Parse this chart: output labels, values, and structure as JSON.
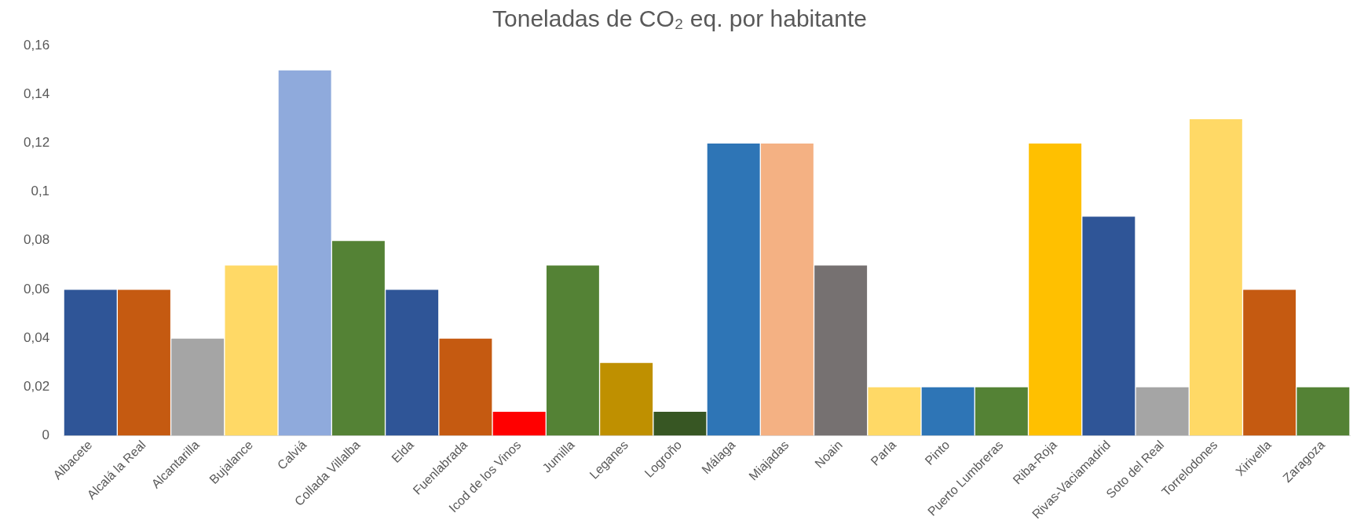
{
  "chart_data": {
    "type": "bar",
    "title": "Toneladas de CO₂ eq. por habitante",
    "categories": [
      "Albacete",
      "Alcalá la Real",
      "Alcantarilla",
      "Bujalance",
      "Calviá",
      "Collada Villalba",
      "Elda",
      "Fuenlabrada",
      "Icod de los Vinos",
      "Jumilla",
      "Leganes",
      "Logroño",
      "Málaga",
      "Miajadas",
      "Noain",
      "Parla",
      "Pinto",
      "Puerto Lumbreras",
      "Riba-Roja",
      "Rivas-Vaciamadrid",
      "Soto del Real",
      "Torrelodones",
      "Xirivella",
      "Zaragoza"
    ],
    "values": [
      0.06,
      0.06,
      0.04,
      0.07,
      0.15,
      0.08,
      0.06,
      0.04,
      0.01,
      0.07,
      0.03,
      0.01,
      0.12,
      0.12,
      0.07,
      0.02,
      0.02,
      0.02,
      0.12,
      0.09,
      0.02,
      0.13,
      0.06,
      0.02
    ],
    "colors": [
      "#2f5597",
      "#c55a11",
      "#a5a5a5",
      "#ffd966",
      "#8faadc",
      "#548235",
      "#2f5597",
      "#c55a11",
      "#ff0000",
      "#548235",
      "#bf9000",
      "#375623",
      "#2e75b6",
      "#f4b183",
      "#767171",
      "#ffd966",
      "#2e75b6",
      "#548235",
      "#ffc000",
      "#2f5597",
      "#a5a5a5",
      "#ffd966",
      "#c55a11",
      "#548235"
    ],
    "ylim": [
      0,
      0.16
    ],
    "yticks": [
      0,
      {
        "value": 0.02,
        "label": "0,02"
      },
      {
        "value": 0.04,
        "label": "0,04"
      },
      {
        "value": 0.06,
        "label": "0,06"
      },
      {
        "value": 0.08,
        "label": "0,08"
      },
      {
        "value": 0.1,
        "label": "0,1"
      },
      {
        "value": 0.12,
        "label": "0,12"
      },
      {
        "value": 0.14,
        "label": "0,14"
      },
      {
        "value": 0.16,
        "label": "0,16"
      }
    ],
    "grid": false,
    "legend": false
  }
}
